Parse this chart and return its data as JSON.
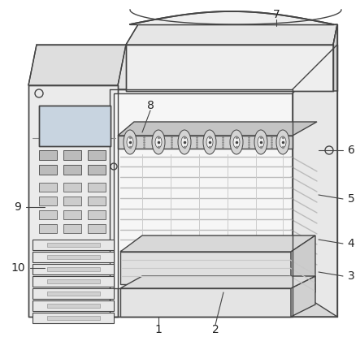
{
  "figsize": [
    4.43,
    4.15
  ],
  "dpi": 100,
  "background_color": "#ffffff",
  "line_color": "#444444",
  "lw": 1.0,
  "face_light": "#f2f2f2",
  "face_mid": "#e0e0e0",
  "face_dark": "#cccccc",
  "face_side": "#d4d4d4",
  "face_top": "#e8e8e8",
  "hood_color": "#eeeeee",
  "tray_color": "#dcdcdc",
  "roller_color": "#d8d8d8",
  "interior_color": "#f6f6f6",
  "label_fontsize": 10,
  "label_color": "#222222"
}
